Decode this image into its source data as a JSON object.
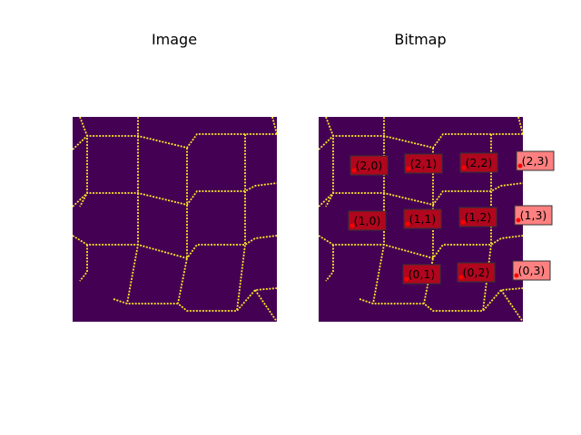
{
  "panels": {
    "left": {
      "title": "Image"
    },
    "right": {
      "title": "Bitmap"
    }
  },
  "colors": {
    "background": "#440154",
    "line": "#fde725",
    "label_box_dark": "#b0061e",
    "label_box_light": "#ff8080",
    "marker": "#ff0000"
  },
  "cell_labels": [
    {
      "text": "(2,0)",
      "style": "dark"
    },
    {
      "text": "(2,1)",
      "style": "dark"
    },
    {
      "text": "(2,2)",
      "style": "dark"
    },
    {
      "text": "(2,3)",
      "style": "light"
    },
    {
      "text": "(1,0)",
      "style": "dark"
    },
    {
      "text": "(1,1)",
      "style": "dark"
    },
    {
      "text": "(1,2)",
      "style": "dark"
    },
    {
      "text": "(1,3)",
      "style": "light"
    },
    {
      "text": "(0,1)",
      "style": "dark"
    },
    {
      "text": "(0,2)",
      "style": "dark"
    },
    {
      "text": "(0,3)",
      "style": "light"
    }
  ]
}
